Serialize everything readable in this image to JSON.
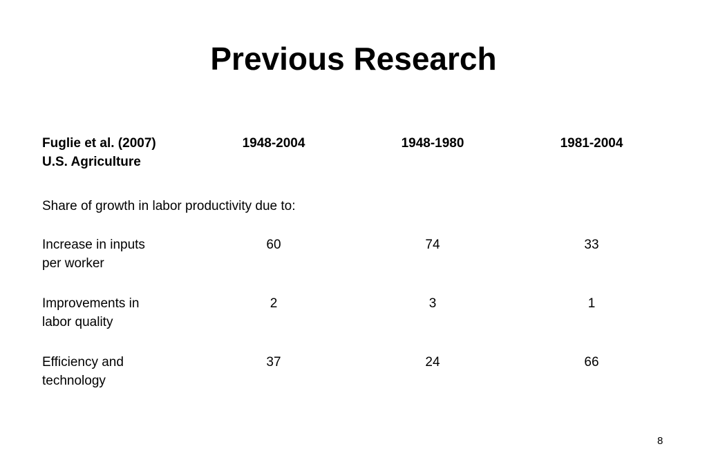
{
  "title": "Previous Research",
  "table": {
    "header": {
      "label": [
        "Fuglie et al. (2007)",
        "U.S. Agriculture"
      ],
      "columns": [
        "1948-2004",
        "1948-1980",
        "1981-2004"
      ]
    },
    "caption": "Share of growth in labor productivity due to:",
    "rows": [
      {
        "label": [
          "Increase in inputs",
          "per worker"
        ],
        "values": [
          60,
          74,
          33
        ]
      },
      {
        "label": [
          "Improvements in",
          "labor quality"
        ],
        "values": [
          2,
          3,
          1
        ]
      },
      {
        "label": [
          "Efficiency and",
          "technology"
        ],
        "values": [
          37,
          24,
          66
        ]
      }
    ]
  },
  "page_number": 8
}
